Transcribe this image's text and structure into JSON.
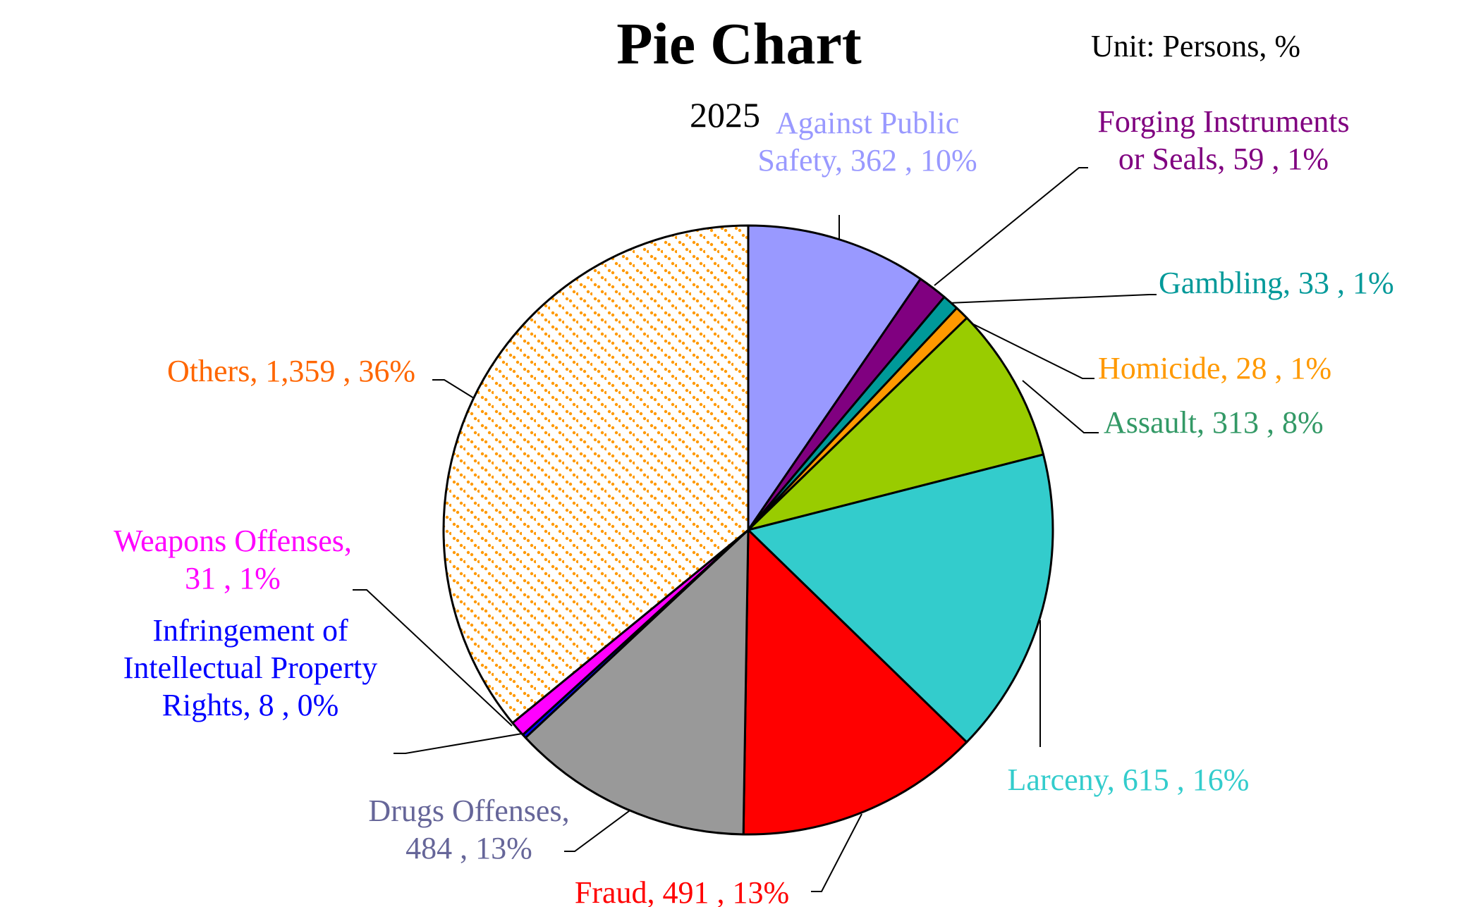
{
  "chart_data": {
    "type": "pie",
    "title": "Pie Chart",
    "subtitle": "2025",
    "unit": "Unit: Persons, %",
    "start_angle_deg": 0,
    "direction": "clockwise",
    "slices": [
      {
        "name": "Against Public Safety",
        "value": 362,
        "percent": 10,
        "color": "#9999FF",
        "label_lines": [
          "Against Public",
          "Safety, 362 , 10%"
        ],
        "label_color": "#9999FF"
      },
      {
        "name": "Forging Instruments or Seals",
        "value": 59,
        "percent": 1,
        "color": "#800080",
        "label_lines": [
          "Forging Instruments",
          "or Seals, 59 , 1%"
        ],
        "label_color": "#800080"
      },
      {
        "name": "Gambling",
        "value": 33,
        "percent": 1,
        "color": "#009999",
        "label_lines": [
          "Gambling, 33 , 1%"
        ],
        "label_color": "#009999"
      },
      {
        "name": "Homicide",
        "value": 28,
        "percent": 1,
        "color": "#FF9900",
        "label_lines": [
          "Homicide, 28 , 1%"
        ],
        "label_color": "#FF9900"
      },
      {
        "name": "Assault",
        "value": 313,
        "percent": 8,
        "color": "#99CC00",
        "label_lines": [
          "Assault, 313 , 8%"
        ],
        "label_color": "#339966"
      },
      {
        "name": "Larceny",
        "value": 615,
        "percent": 16,
        "color": "#33CCCC",
        "label_lines": [
          "Larceny, 615 , 16%"
        ],
        "label_color": "#33CCCC"
      },
      {
        "name": "Fraud",
        "value": 491,
        "percent": 13,
        "color": "#FF0000",
        "label_lines": [
          "Fraud, 491 , 13%"
        ],
        "label_color": "#FF0000"
      },
      {
        "name": "Drugs Offenses",
        "value": 484,
        "percent": 13,
        "color": "#999999",
        "label_lines": [
          "Drugs Offenses,",
          "484 , 13%"
        ],
        "label_color": "#666699"
      },
      {
        "name": "Infringement of Intellectual Property Rights",
        "value": 8,
        "percent": 0,
        "color": "#0000FF",
        "label_lines": [
          "Infringement of",
          "Intellectual Property",
          "Rights, 8 , 0%"
        ],
        "label_color": "#0000FF"
      },
      {
        "name": "Weapons Offenses",
        "value": 31,
        "percent": 1,
        "color": "#FF00FF",
        "label_lines": [
          "Weapons Offenses,",
          "31 , 1%"
        ],
        "label_color": "#FF00FF"
      },
      {
        "name": "Others",
        "value": 1359,
        "percent": 36,
        "color": "#FF9900",
        "pattern": "dotted",
        "label_lines": [
          "Others, 1,359 , 36%"
        ],
        "label_color": "#FF6600"
      }
    ]
  }
}
